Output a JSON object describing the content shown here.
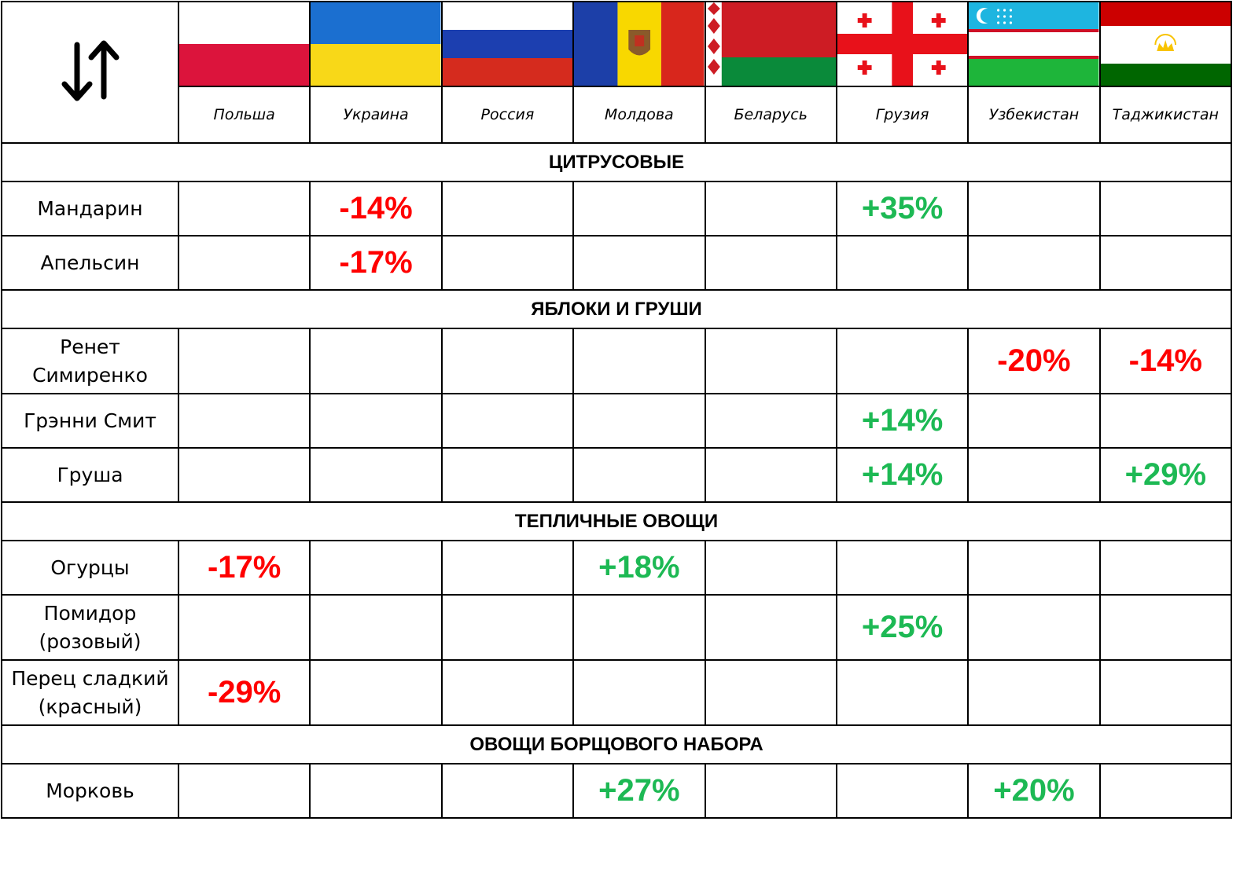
{
  "table": {
    "columns": [
      "Польша",
      "Украина",
      "Россия",
      "Молдова",
      "Беларусь",
      "Грузия",
      "Узбекистан",
      "Таджикистан"
    ],
    "sections": [
      {
        "title": "ЦИТРУСОВЫЕ",
        "rows": [
          {
            "name": "Мандарин",
            "cells": [
              null,
              "-14%",
              null,
              null,
              null,
              "+35%",
              null,
              null
            ]
          },
          {
            "name": "Апельсин",
            "cells": [
              null,
              "-17%",
              null,
              null,
              null,
              null,
              null,
              null
            ]
          }
        ]
      },
      {
        "title": "ЯБЛОКИ И ГРУШИ",
        "rows": [
          {
            "name": "Ренет\nСимиренко",
            "cells": [
              null,
              null,
              null,
              null,
              null,
              null,
              "-20%",
              "-14%"
            ]
          },
          {
            "name": "Грэнни Смит",
            "cells": [
              null,
              null,
              null,
              null,
              null,
              "+14%",
              null,
              null
            ]
          },
          {
            "name": "Груша",
            "cells": [
              null,
              null,
              null,
              null,
              null,
              "+14%",
              null,
              "+29%"
            ]
          }
        ]
      },
      {
        "title": "ТЕПЛИЧНЫЕ ОВОЩИ",
        "rows": [
          {
            "name": "Огурцы",
            "cells": [
              "-17%",
              null,
              null,
              "+18%",
              null,
              null,
              null,
              null
            ]
          },
          {
            "name": "Помидор\n(розовый)",
            "cells": [
              null,
              null,
              null,
              null,
              null,
              "+25%",
              null,
              null
            ]
          },
          {
            "name": "Перец сладкий\n(красный)",
            "cells": [
              "-29%",
              null,
              null,
              null,
              null,
              null,
              null,
              null
            ]
          }
        ]
      },
      {
        "title": "ОВОЩИ БОРЩОВОГО НАБОРА",
        "rows": [
          {
            "name": "Морковь",
            "cells": [
              null,
              null,
              null,
              "+27%",
              null,
              null,
              "+20%",
              null
            ]
          }
        ]
      }
    ]
  }
}
